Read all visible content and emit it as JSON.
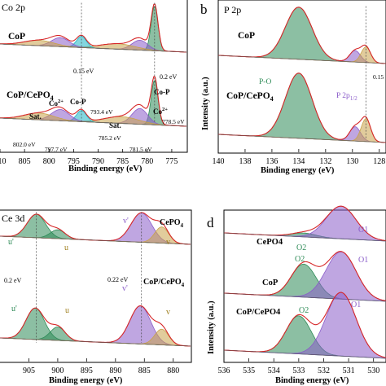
{
  "chart_data": [
    {
      "panel": "a",
      "type": "line",
      "title": "Co 2p",
      "xlabel": "Binding energy (eV)",
      "ylabel": "",
      "xlim": [
        810,
        772
      ],
      "reverse_x": true,
      "x_ticks": [
        "810",
        "805",
        "800",
        "795",
        "790",
        "785",
        "780",
        "775"
      ],
      "x_tick_values": [
        810,
        805,
        800,
        795,
        790,
        785,
        780,
        775
      ],
      "samples": [
        {
          "name": "CoP",
          "peaks": [
            {
              "center": 778.5,
              "height": 1.0,
              "width": 0.7,
              "color": "#2e8b57"
            },
            {
              "center": 781.5,
              "height": 0.22,
              "width": 1.6,
              "color": "#8a5cc9"
            },
            {
              "center": 786.0,
              "height": 0.12,
              "width": 3.5,
              "color": "#c8a24a"
            },
            {
              "center": 793.4,
              "height": 0.25,
              "width": 1.0,
              "color": "#1fb5c4"
            },
            {
              "center": 797.7,
              "height": 0.2,
              "width": 1.8,
              "color": "#8a5cc9"
            },
            {
              "center": 802.0,
              "height": 0.12,
              "width": 3.0,
              "color": "#c8a24a"
            }
          ]
        },
        {
          "name": "CoP/CePO4",
          "peaks": [
            {
              "center": 778.5,
              "height": 1.0,
              "width": 0.7,
              "color": "#2e8b57"
            },
            {
              "center": 781.5,
              "height": 0.35,
              "width": 1.6,
              "color": "#8a5cc9"
            },
            {
              "center": 785.2,
              "height": 0.15,
              "width": 3.5,
              "color": "#c8a24a"
            },
            {
              "center": 793.4,
              "height": 0.25,
              "width": 1.0,
              "color": "#1fb5c4"
            },
            {
              "center": 797.7,
              "height": 0.25,
              "width": 1.8,
              "color": "#8a5cc9"
            },
            {
              "center": 802.0,
              "height": 0.15,
              "width": 3.0,
              "color": "#c8a24a"
            }
          ]
        }
      ],
      "annotations": [
        "0.15 eV",
        "0.2 eV",
        "Sat.",
        "Co2+",
        "Co-P",
        "Co2+",
        "Co-P",
        "Sat.",
        "802.0 eV",
        "797.7 eV",
        "793.4 eV",
        "785.2 eV",
        "781.5 eV",
        "778.5 eV"
      ]
    },
    {
      "panel": "b",
      "type": "line",
      "title": "P 2p",
      "xlabel": "Binding energy (eV)",
      "ylabel": "Intensity (a.u.)",
      "xlim": [
        140,
        127.5
      ],
      "reverse_x": true,
      "x_ticks": [
        "140",
        "138",
        "136",
        "134",
        "132",
        "130",
        "128"
      ],
      "x_tick_values": [
        140,
        138,
        136,
        134,
        132,
        130,
        128
      ],
      "samples": [
        {
          "name": "CoP",
          "peaks": [
            {
              "center": 134.0,
              "height": 1.0,
              "width": 1.0,
              "color": "#2e8b57"
            },
            {
              "center": 129.8,
              "height": 0.22,
              "width": 0.4,
              "color": "#8a5cc9"
            },
            {
              "center": 129.0,
              "height": 0.3,
              "width": 0.35,
              "color": "#c8a24a"
            }
          ]
        },
        {
          "name": "CoP/CePO4",
          "peaks": [
            {
              "center": 134.0,
              "height": 1.0,
              "width": 1.0,
              "color": "#2e8b57"
            },
            {
              "center": 129.8,
              "height": 0.22,
              "width": 0.4,
              "color": "#8a5cc9"
            },
            {
              "center": 129.0,
              "height": 0.35,
              "width": 0.35,
              "color": "#c8a24a"
            }
          ]
        }
      ],
      "annotations": [
        "P-O",
        "P 2p1/2",
        "0.15"
      ]
    },
    {
      "panel": "c",
      "type": "line",
      "title": "Ce 3d",
      "xlabel": "Binding energy (eV)",
      "ylabel": "",
      "xlim": [
        910,
        877
      ],
      "reverse_x": true,
      "x_ticks": [
        "905",
        "900",
        "895",
        "890",
        "885",
        "880"
      ],
      "x_tick_values": [
        905,
        900,
        895,
        890,
        885,
        880
      ],
      "samples": [
        {
          "name": "CePO4",
          "peaks": [
            {
              "center": 903.7,
              "height": 0.8,
              "width": 1.6,
              "color": "#2e8b57"
            },
            {
              "center": 900.0,
              "height": 0.3,
              "width": 1.3,
              "color": "#2e8b57"
            },
            {
              "center": 885.5,
              "height": 1.0,
              "width": 1.8,
              "color": "#8a5cc9"
            },
            {
              "center": 882.0,
              "height": 0.55,
              "width": 1.2,
              "color": "#c8a24a"
            }
          ]
        },
        {
          "name": "CoP/CePO4",
          "peaks": [
            {
              "center": 903.9,
              "height": 0.7,
              "width": 1.6,
              "color": "#2e8b57"
            },
            {
              "center": 900.0,
              "height": 0.3,
              "width": 1.3,
              "color": "#2e8b57"
            },
            {
              "center": 885.7,
              "height": 0.85,
              "width": 1.8,
              "color": "#8a5cc9"
            },
            {
              "center": 882.0,
              "height": 0.35,
              "width": 1.2,
              "color": "#c8a24a"
            }
          ]
        }
      ],
      "annotations": [
        "u'",
        "u",
        "v'",
        "v",
        "u'",
        "u",
        "v'",
        "v",
        "0.2 eV",
        "0.22 eV"
      ]
    },
    {
      "panel": "d",
      "type": "line",
      "title": "",
      "xlabel": "Binding energy (eV)",
      "ylabel": "Intensity (a.u.)",
      "xlim": [
        536,
        529.5
      ],
      "reverse_x": true,
      "x_ticks": [
        "536",
        "535",
        "534",
        "533",
        "532",
        "531",
        "530"
      ],
      "x_tick_values": [
        536,
        535,
        534,
        533,
        532,
        531,
        530
      ],
      "samples": [
        {
          "name": "CePO4",
          "peaks": [
            {
              "center": 532.8,
              "height": 0.12,
              "width": 0.5,
              "color": "#2e8b57"
            },
            {
              "center": 531.3,
              "height": 1.0,
              "width": 0.6,
              "color": "#8a5cc9"
            }
          ]
        },
        {
          "name": "CoP",
          "peaks": [
            {
              "center": 532.8,
              "height": 0.7,
              "width": 0.5,
              "color": "#2e8b57"
            },
            {
              "center": 531.3,
              "height": 1.0,
              "width": 0.6,
              "color": "#8a5cc9"
            }
          ]
        },
        {
          "name": "CoP/CePO4",
          "peaks": [
            {
              "center": 533.0,
              "height": 0.6,
              "width": 0.5,
              "color": "#2e8b57"
            },
            {
              "center": 531.3,
              "height": 1.0,
              "width": 0.6,
              "color": "#8a5cc9"
            }
          ]
        }
      ],
      "annotations": [
        "O2",
        "O1",
        "O2",
        "O1",
        "O2",
        "O1"
      ]
    }
  ],
  "panel_letters": [
    "b",
    "d"
  ],
  "labels": {
    "a_title": "Co 2p",
    "a_top": "CoP",
    "a_bottom": "CoP/CePO",
    "a_bottom_sub": "4",
    "a_shift1": "0.15 eV",
    "a_shift2": "0.2 eV",
    "a_sat1": "Sat.",
    "a_co2a": "Co",
    "a_co2a_sup": "2+",
    "a_cop1": "Co-P",
    "a_cop2": "Co-P",
    "a_co2b": "Co",
    "a_co2b_sup": "2+",
    "a_sat2": "Sat.",
    "a_e1": "802.0 eV",
    "a_e2": "797.7 eV",
    "a_e3": "793.4 eV",
    "a_e4": "785.2 eV",
    "a_e5": "781.5 eV",
    "a_e6": "778.5 eV",
    "b_title": "P 2p",
    "b_top": "CoP",
    "b_bottom": "CoP/CePO",
    "b_bottom_sub": "4",
    "b_po": "P-O",
    "b_p2p": "P 2p",
    "b_p2p_sub": "1/2",
    "b_shift": "0.15",
    "c_title": "Ce 3d",
    "c_top": "CePO",
    "c_top_sub": "4",
    "c_bottom": "CoP/CePO",
    "c_bottom_sub": "4",
    "c_u1": "u'",
    "c_u2": "u",
    "c_v1": "v'",
    "c_v2": "v",
    "c_u3": "u'",
    "c_u4": "u",
    "c_v3": "v'",
    "c_v4": "v",
    "c_shift1": "0.2 eV",
    "c_shift2": "0.22 eV",
    "d_s1": "CePO4",
    "d_s2": "CoP",
    "d_s3": "CoP/CePO4",
    "d_o2a": "O2",
    "d_o1a": "O1",
    "d_o2b": "O2",
    "d_o1b": "O1",
    "d_o2c": "O2",
    "d_o1c": "O1"
  },
  "colors": {
    "green": "#2e8b57",
    "purple": "#8a5cc9",
    "gold": "#c8a24a",
    "cyan": "#1fb5c4",
    "envelope": "#d62728",
    "data": "#333333"
  }
}
